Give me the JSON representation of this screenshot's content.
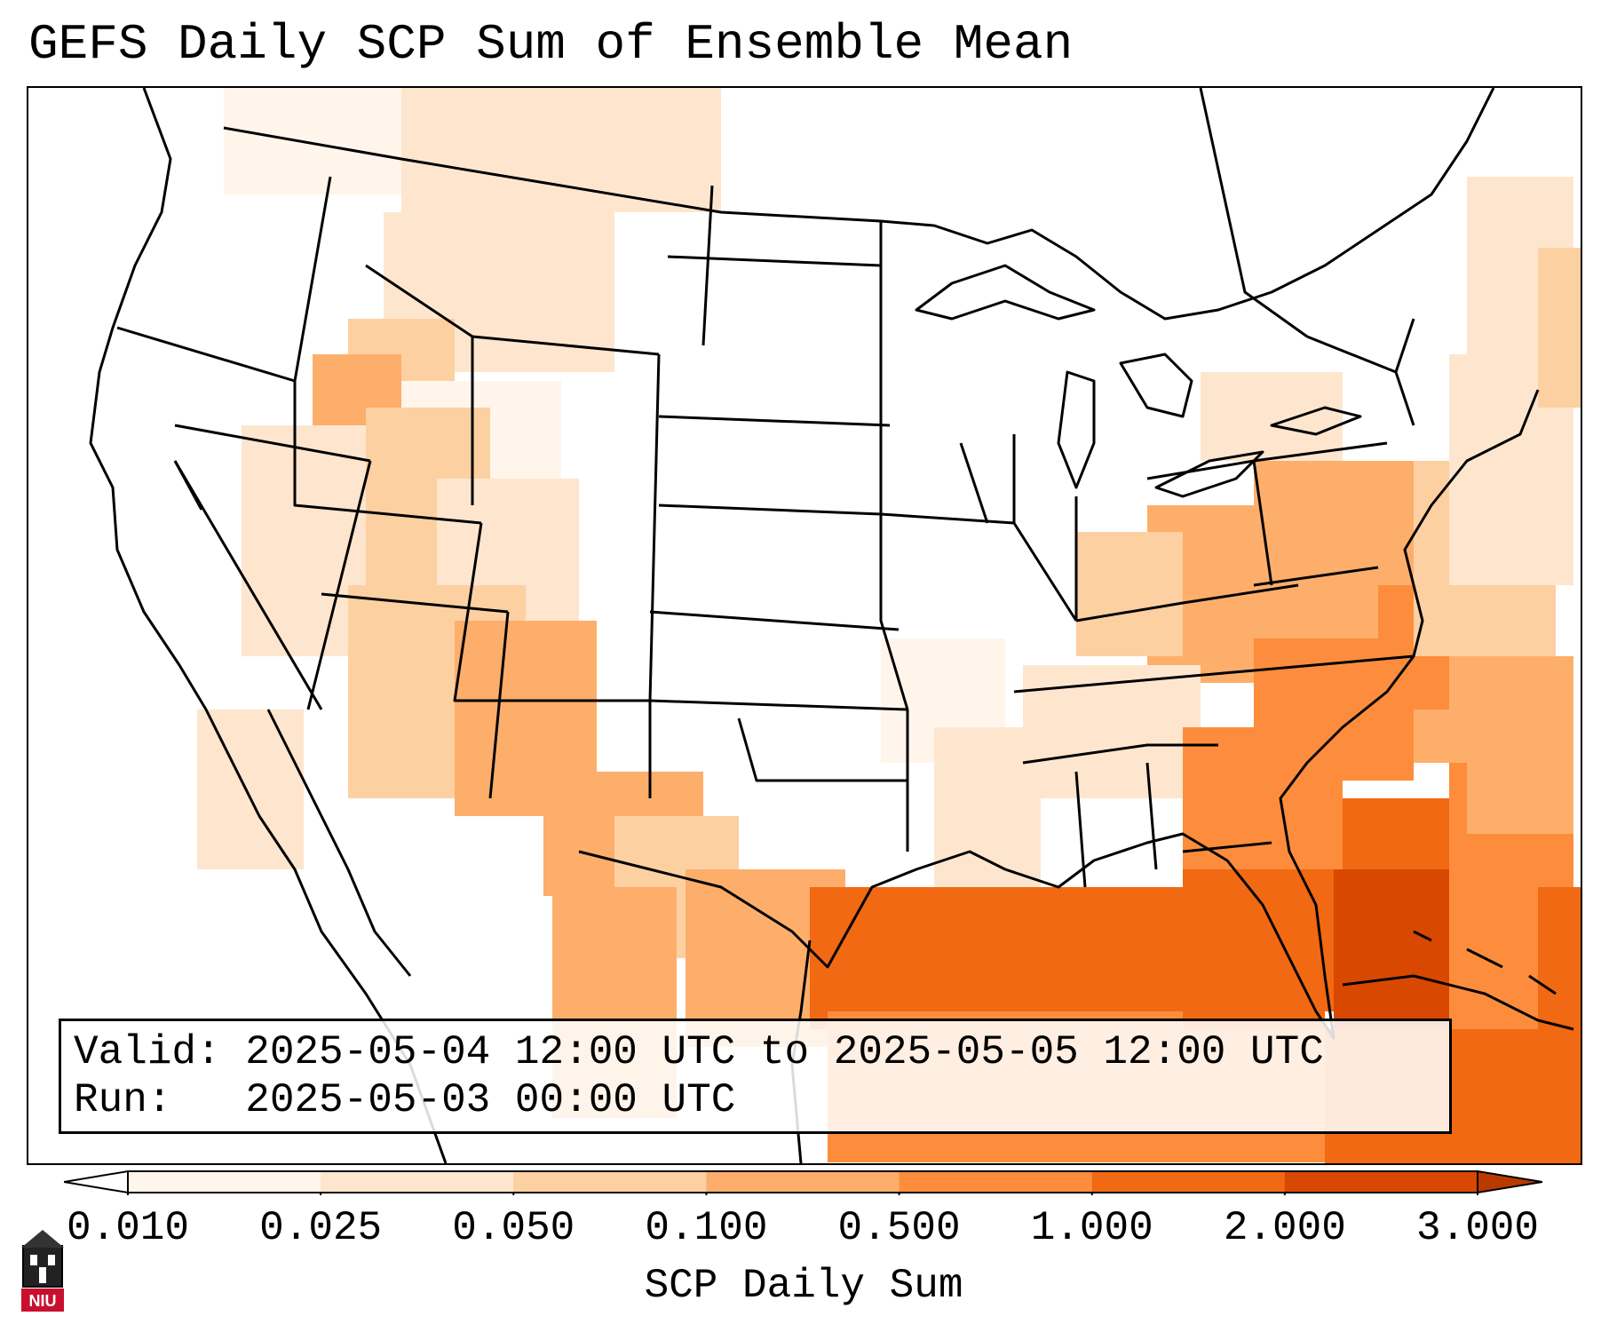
{
  "title": "GEFS Daily SCP Sum of Ensemble Mean",
  "info": {
    "valid_line": "Valid: 2025-05-04 12:00 UTC to 2025-05-05 12:00 UTC",
    "run_line": "Run:   2025-05-03 00:00 UTC"
  },
  "colorbar": {
    "title": "SCP Daily Sum",
    "ticks": [
      "0.010",
      "0.025",
      "0.050",
      "0.100",
      "0.500",
      "1.000",
      "2.000",
      "3.000"
    ],
    "colors": [
      "#fff5eb",
      "#fee6ce",
      "#fdd0a2",
      "#fdae6b",
      "#fd8d3c",
      "#f16913",
      "#d94801"
    ],
    "extend_min_color": "#ffffff",
    "extend_max_color": "#b83a00"
  },
  "logo": {
    "text": "NIU",
    "primary_color": "#c8102e"
  },
  "map": {
    "region": "CONUS",
    "border_color": "#000000",
    "fill_levels": [
      "#fff5eb",
      "#fee6ce",
      "#fdd0a2",
      "#fdae6b",
      "#fd8d3c",
      "#f16913",
      "#d94801"
    ]
  }
}
